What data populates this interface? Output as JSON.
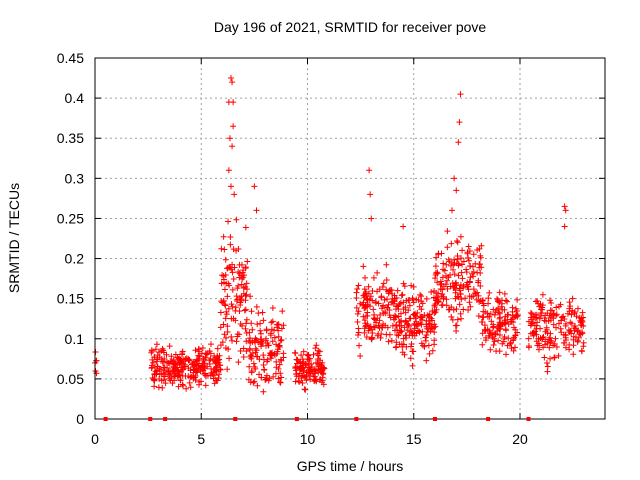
{
  "chart_data": {
    "type": "scatter",
    "title": "Day 196 of 2021, SRMTID for receiver pove",
    "xlabel": "GPS time / hours",
    "ylabel": "SRMTID / TECUs",
    "xlim": [
      0,
      24
    ],
    "ylim": [
      0,
      0.45
    ],
    "xticks": [
      0,
      5,
      10,
      15,
      20
    ],
    "xtick_labels": [
      "0",
      "5",
      "10",
      "15",
      "20"
    ],
    "yticks": [
      0,
      0.05,
      0.1,
      0.15,
      0.2,
      0.25,
      0.3,
      0.35,
      0.4,
      0.45
    ],
    "ytick_labels": [
      "0",
      "0.05",
      "0.1",
      "0.15",
      "0.2",
      "0.25",
      "0.3",
      "0.35",
      "0.4",
      "0.45"
    ],
    "grid": true,
    "marker": "plus",
    "color": "#ff0000",
    "zero_markers_x": [
      0.5,
      2.6,
      3.3,
      6.6,
      9.5,
      12.3,
      16.0,
      18.5,
      20.4
    ],
    "segments": [
      {
        "x_start": 0.0,
        "x_end": 0.1,
        "base": 0.07,
        "spread": 0.03,
        "n": 6
      },
      {
        "x_start": 2.65,
        "x_end": 5.9,
        "base": 0.065,
        "spread": 0.035,
        "n": 260
      },
      {
        "x_start": 5.9,
        "x_end": 7.2,
        "base": 0.15,
        "spread": 0.12,
        "n": 120
      },
      {
        "x_start": 7.2,
        "x_end": 8.9,
        "base": 0.09,
        "spread": 0.07,
        "n": 130
      },
      {
        "x_start": 9.4,
        "x_end": 10.8,
        "base": 0.065,
        "spread": 0.035,
        "n": 120
      },
      {
        "x_start": 12.3,
        "x_end": 14.2,
        "base": 0.13,
        "spread": 0.07,
        "n": 150
      },
      {
        "x_start": 14.2,
        "x_end": 16.0,
        "base": 0.12,
        "spread": 0.06,
        "n": 150
      },
      {
        "x_start": 16.0,
        "x_end": 18.2,
        "base": 0.17,
        "spread": 0.08,
        "n": 170
      },
      {
        "x_start": 18.2,
        "x_end": 19.9,
        "base": 0.12,
        "spread": 0.05,
        "n": 130
      },
      {
        "x_start": 20.4,
        "x_end": 23.0,
        "base": 0.115,
        "spread": 0.06,
        "n": 180
      }
    ],
    "peaks": [
      {
        "x": 6.4,
        "y": 0.425
      },
      {
        "x": 6.45,
        "y": 0.42
      },
      {
        "x": 6.3,
        "y": 0.395
      },
      {
        "x": 6.5,
        "y": 0.395
      },
      {
        "x": 6.35,
        "y": 0.35
      },
      {
        "x": 6.45,
        "y": 0.34
      },
      {
        "x": 6.5,
        "y": 0.365
      },
      {
        "x": 6.3,
        "y": 0.31
      },
      {
        "x": 6.4,
        "y": 0.29
      },
      {
        "x": 6.55,
        "y": 0.28
      },
      {
        "x": 7.5,
        "y": 0.29
      },
      {
        "x": 7.6,
        "y": 0.26
      },
      {
        "x": 12.9,
        "y": 0.31
      },
      {
        "x": 12.95,
        "y": 0.28
      },
      {
        "x": 13.0,
        "y": 0.25
      },
      {
        "x": 17.2,
        "y": 0.405
      },
      {
        "x": 17.15,
        "y": 0.37
      },
      {
        "x": 17.1,
        "y": 0.345
      },
      {
        "x": 16.9,
        "y": 0.3
      },
      {
        "x": 17.0,
        "y": 0.285
      },
      {
        "x": 16.8,
        "y": 0.26
      },
      {
        "x": 22.1,
        "y": 0.265
      },
      {
        "x": 22.15,
        "y": 0.26
      },
      {
        "x": 22.1,
        "y": 0.24
      },
      {
        "x": 14.5,
        "y": 0.24
      }
    ]
  }
}
